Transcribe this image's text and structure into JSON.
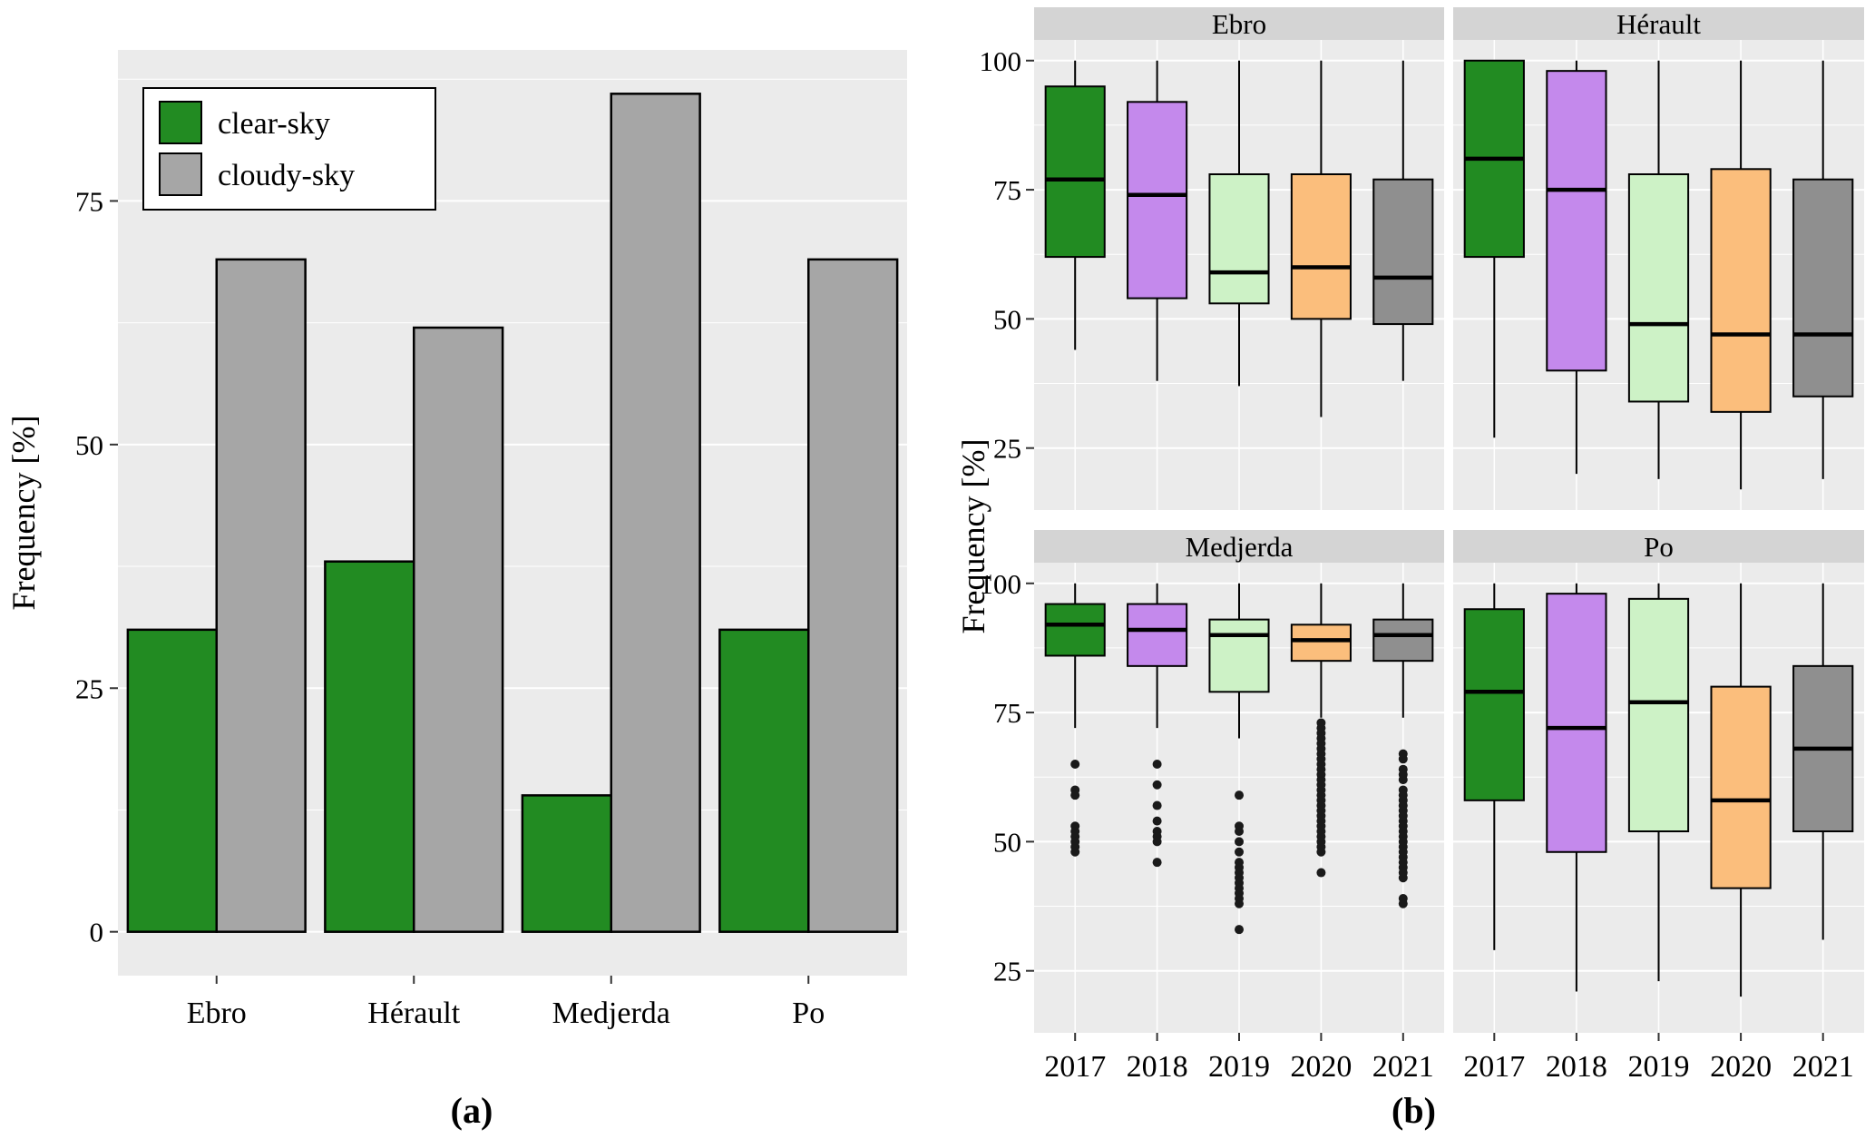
{
  "figure": {
    "background": "#ffffff",
    "panel_background": "#EBEBEB",
    "grid_color": "#ffffff",
    "strip_background": "#D4D4D4"
  },
  "chart_data": [
    {
      "type": "bar",
      "panel_label": "(a)",
      "title": "",
      "xlabel": "",
      "ylabel": "Frequency [%]",
      "categories": [
        "Ebro",
        "Hérault",
        "Medjerda",
        "Po"
      ],
      "series": [
        {
          "name": "clear-sky",
          "color": "#228B22",
          "values": [
            31,
            38,
            14,
            31
          ]
        },
        {
          "name": "cloudy-sky",
          "color": "#A6A6A6",
          "values": [
            69,
            62,
            86,
            69
          ]
        }
      ],
      "ylim": [
        -4.5,
        90.5
      ],
      "yticks": [
        0,
        25,
        50,
        75
      ],
      "yticks_minor": [
        12.5,
        37.5,
        62.5,
        87.5
      ],
      "grid": true,
      "legend_position": "top-left",
      "panel_background": "#EBEBEB",
      "grid_color": "#ffffff"
    },
    {
      "type": "boxplot",
      "panel_label": "(b)",
      "title": "",
      "xlabel": "",
      "ylabel": "Frequency [%]",
      "x_categories": [
        "2017",
        "2018",
        "2019",
        "2020",
        "2021"
      ],
      "colors": {
        "2017": "#228B22",
        "2018": "#C489EC",
        "2019": "#CDF2C6",
        "2020": "#FBBE7C",
        "2021": "#8F8F8F"
      },
      "ylim": [
        13,
        104
      ],
      "yticks": [
        25,
        50,
        75,
        100
      ],
      "yticks_minor": [
        37.5,
        62.5,
        87.5
      ],
      "grid": true,
      "panel_background": "#EBEBEB",
      "grid_color": "#ffffff",
      "strip_background": "#D4D4D4",
      "facets": [
        {
          "name": "Ebro",
          "boxes": [
            {
              "year": "2017",
              "low": 44,
              "q1": 62,
              "median": 77,
              "q3": 95,
              "high": 100,
              "outliers": []
            },
            {
              "year": "2018",
              "low": 38,
              "q1": 54,
              "median": 74,
              "q3": 92,
              "high": 100,
              "outliers": []
            },
            {
              "year": "2019",
              "low": 37,
              "q1": 53,
              "median": 59,
              "q3": 78,
              "high": 100,
              "outliers": []
            },
            {
              "year": "2020",
              "low": 31,
              "q1": 50,
              "median": 60,
              "q3": 78,
              "high": 100,
              "outliers": []
            },
            {
              "year": "2021",
              "low": 38,
              "q1": 49,
              "median": 58,
              "q3": 77,
              "high": 100,
              "outliers": []
            }
          ]
        },
        {
          "name": "Hérault",
          "boxes": [
            {
              "year": "2017",
              "low": 27,
              "q1": 62,
              "median": 81,
              "q3": 100,
              "high": 100,
              "outliers": []
            },
            {
              "year": "2018",
              "low": 20,
              "q1": 40,
              "median": 75,
              "q3": 98,
              "high": 100,
              "outliers": []
            },
            {
              "year": "2019",
              "low": 19,
              "q1": 34,
              "median": 49,
              "q3": 78,
              "high": 100,
              "outliers": []
            },
            {
              "year": "2020",
              "low": 17,
              "q1": 32,
              "median": 47,
              "q3": 79,
              "high": 100,
              "outliers": []
            },
            {
              "year": "2021",
              "low": 19,
              "q1": 35,
              "median": 47,
              "q3": 77,
              "high": 100,
              "outliers": []
            }
          ]
        },
        {
          "name": "Medjerda",
          "boxes": [
            {
              "year": "2017",
              "low": 72,
              "q1": 86,
              "median": 92,
              "q3": 96,
              "high": 100,
              "outliers": [
                65,
                60,
                59,
                53,
                52,
                51,
                50,
                49,
                48
              ]
            },
            {
              "year": "2018",
              "low": 72,
              "q1": 84,
              "median": 91,
              "q3": 96,
              "high": 100,
              "outliers": [
                65,
                61,
                57,
                54,
                52,
                51,
                50,
                46
              ]
            },
            {
              "year": "2019",
              "low": 70,
              "q1": 79,
              "median": 90,
              "q3": 93,
              "high": 100,
              "outliers": [
                59,
                53,
                52,
                50,
                48,
                46,
                45,
                44,
                43,
                42,
                41,
                40,
                39,
                38,
                33
              ]
            },
            {
              "year": "2020",
              "low": 74,
              "q1": 85,
              "median": 89,
              "q3": 92,
              "high": 100,
              "outliers": [
                73,
                72,
                71,
                70,
                69,
                68,
                67,
                66,
                65,
                64,
                63,
                62,
                61,
                60,
                59,
                58,
                57,
                56,
                55,
                54,
                53,
                52,
                51,
                50,
                49,
                48,
                44
              ]
            },
            {
              "year": "2021",
              "low": 74,
              "q1": 85,
              "median": 90,
              "q3": 93,
              "high": 100,
              "outliers": [
                67,
                66,
                64,
                63,
                62,
                60,
                59,
                58,
                57,
                56,
                55,
                54,
                53,
                52,
                51,
                50,
                49,
                48,
                47,
                46,
                45,
                44,
                43,
                39,
                38
              ]
            }
          ]
        },
        {
          "name": "Po",
          "boxes": [
            {
              "year": "2017",
              "low": 29,
              "q1": 58,
              "median": 79,
              "q3": 95,
              "high": 100,
              "outliers": []
            },
            {
              "year": "2018",
              "low": 21,
              "q1": 48,
              "median": 72,
              "q3": 98,
              "high": 100,
              "outliers": []
            },
            {
              "year": "2019",
              "low": 23,
              "q1": 52,
              "median": 77,
              "q3": 97,
              "high": 100,
              "outliers": []
            },
            {
              "year": "2020",
              "low": 20,
              "q1": 41,
              "median": 58,
              "q3": 80,
              "high": 100,
              "outliers": []
            },
            {
              "year": "2021",
              "low": 31,
              "q1": 52,
              "median": 68,
              "q3": 84,
              "high": 100,
              "outliers": []
            }
          ]
        }
      ]
    }
  ]
}
